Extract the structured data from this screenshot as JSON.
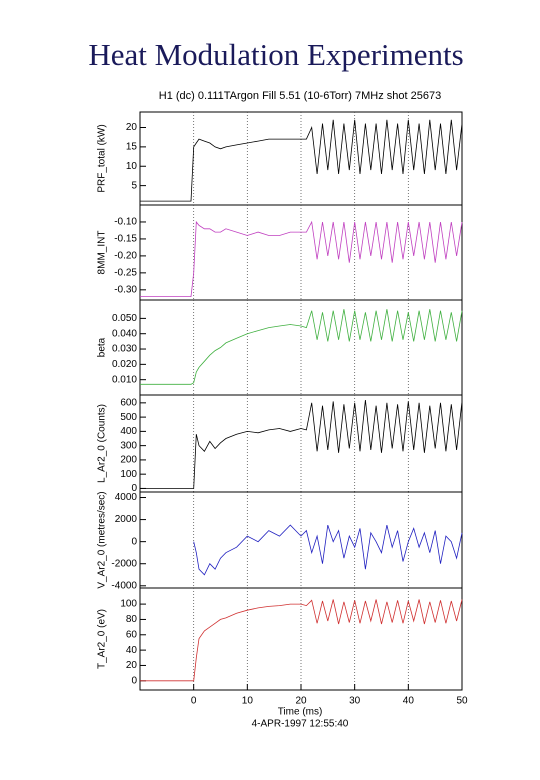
{
  "title": "Heat Modulation Experiments",
  "chart_data": {
    "type": "line",
    "header": "H1 (dc) 0.111TArgon Fill 5.51 (10-6Torr) 7MHz shot 25673",
    "xlabel": "Time (ms)",
    "footer": "4-APR-1997 12:55:40",
    "xlim": [
      -10,
      50
    ],
    "xticks": [
      0,
      10,
      20,
      30,
      40,
      50
    ],
    "grid": true,
    "x": [
      -10,
      -8,
      -6,
      -4,
      -2,
      -0.5,
      0,
      0.5,
      1,
      2,
      3,
      4,
      5,
      6,
      8,
      10,
      12,
      14,
      16,
      18,
      20,
      21,
      22,
      23,
      24,
      25,
      26,
      27,
      28,
      29,
      30,
      31,
      32,
      33,
      34,
      35,
      36,
      37,
      38,
      39,
      40,
      41,
      42,
      43,
      44,
      45,
      46,
      47,
      48,
      49,
      50
    ],
    "panels": [
      {
        "ylabel": "PRF_total (kW)",
        "color": "#000000",
        "ylim": [
          0,
          24
        ],
        "yticks": [
          5,
          10,
          15,
          20
        ],
        "values": [
          1,
          1,
          1,
          1,
          1,
          1,
          15,
          16,
          17,
          16.5,
          16,
          15,
          14.5,
          15,
          15.5,
          16,
          16.5,
          17,
          17,
          17,
          17,
          17,
          20,
          8,
          21,
          9,
          22,
          8,
          21,
          9,
          22,
          8,
          21,
          9,
          21,
          8,
          22,
          9,
          21,
          8,
          22,
          9,
          21,
          8,
          22,
          9,
          21,
          8,
          22,
          9,
          21
        ]
      },
      {
        "ylabel": "8MM_INT",
        "color": "#c040c0",
        "ylim": [
          -0.33,
          -0.05
        ],
        "yticks": [
          {
            "value": -0.3,
            "label": "-0.30"
          },
          {
            "value": -0.25,
            "label": "-0.25"
          },
          {
            "value": -0.2,
            "label": "-0.20"
          },
          {
            "value": -0.15,
            "label": "-0.15"
          },
          {
            "value": -0.1,
            "label": "-0.10"
          }
        ],
        "values": [
          -0.32,
          -0.32,
          -0.32,
          -0.32,
          -0.32,
          -0.32,
          -0.25,
          -0.1,
          -0.11,
          -0.12,
          -0.12,
          -0.13,
          -0.13,
          -0.12,
          -0.13,
          -0.14,
          -0.13,
          -0.14,
          -0.14,
          -0.13,
          -0.13,
          -0.13,
          -0.1,
          -0.21,
          -0.1,
          -0.2,
          -0.1,
          -0.21,
          -0.1,
          -0.22,
          -0.1,
          -0.21,
          -0.1,
          -0.2,
          -0.1,
          -0.21,
          -0.1,
          -0.22,
          -0.1,
          -0.21,
          -0.1,
          -0.2,
          -0.1,
          -0.21,
          -0.1,
          -0.22,
          -0.1,
          -0.21,
          -0.1,
          -0.2,
          -0.1
        ]
      },
      {
        "ylabel": "beta",
        "color": "#40b040",
        "ylim": [
          0,
          0.062
        ],
        "yticks": [
          {
            "value": 0.01,
            "label": "0.010"
          },
          {
            "value": 0.02,
            "label": "0.020"
          },
          {
            "value": 0.03,
            "label": "0.030"
          },
          {
            "value": 0.04,
            "label": "0.040"
          },
          {
            "value": 0.05,
            "label": "0.050"
          }
        ],
        "values": [
          0.007,
          0.007,
          0.007,
          0.007,
          0.007,
          0.007,
          0.008,
          0.015,
          0.018,
          0.022,
          0.026,
          0.029,
          0.031,
          0.034,
          0.037,
          0.04,
          0.042,
          0.044,
          0.045,
          0.046,
          0.045,
          0.044,
          0.055,
          0.036,
          0.054,
          0.035,
          0.055,
          0.036,
          0.056,
          0.035,
          0.055,
          0.036,
          0.054,
          0.035,
          0.055,
          0.036,
          0.056,
          0.035,
          0.055,
          0.036,
          0.054,
          0.035,
          0.055,
          0.036,
          0.056,
          0.035,
          0.055,
          0.036,
          0.054,
          0.035,
          0.055
        ]
      },
      {
        "ylabel": "L_Ar2_0 (Counts)",
        "color": "#000000",
        "ylim": [
          -25,
          655
        ],
        "yticks": [
          0,
          100,
          200,
          300,
          400,
          500,
          600
        ],
        "values": [
          0,
          0,
          0,
          0,
          0,
          0,
          0,
          380,
          300,
          260,
          330,
          280,
          320,
          350,
          380,
          400,
          390,
          410,
          420,
          400,
          420,
          410,
          600,
          260,
          580,
          270,
          610,
          250,
          590,
          280,
          600,
          260,
          620,
          270,
          580,
          250,
          600,
          280,
          590,
          260,
          610,
          270,
          600,
          250,
          580,
          280,
          600,
          260,
          590,
          270,
          610
        ]
      },
      {
        "ylabel": "V_Ar2_0 (metres/sec)",
        "color": "#2020c0",
        "ylim": [
          -4200,
          4500
        ],
        "yticks": [
          -4000,
          -2000,
          0,
          2000,
          4000
        ],
        "values": [
          null,
          null,
          null,
          null,
          null,
          null,
          0,
          -1000,
          -2500,
          -3000,
          -2000,
          -2500,
          -1500,
          -1000,
          -500,
          500,
          0,
          1000,
          500,
          1500,
          500,
          1000,
          -1000,
          500,
          -2000,
          1500,
          0,
          1000,
          -1500,
          500,
          -500,
          1200,
          -2500,
          800,
          0,
          -1000,
          1500,
          -500,
          1000,
          -1800,
          0,
          1200,
          -500,
          800,
          -1000,
          1000,
          -2000,
          500,
          0,
          -1500,
          800
        ]
      },
      {
        "ylabel": "T_Ar2_0 (eV)",
        "color": "#d03030",
        "ylim": [
          -12,
          121
        ],
        "yticks": [
          0,
          20,
          40,
          60,
          80,
          100
        ],
        "values": [
          0,
          0,
          0,
          0,
          0,
          0,
          0,
          30,
          55,
          65,
          70,
          75,
          80,
          82,
          88,
          92,
          95,
          97,
          98,
          100,
          100,
          98,
          105,
          75,
          104,
          78,
          106,
          74,
          103,
          76,
          105,
          75,
          104,
          78,
          106,
          74,
          103,
          76,
          105,
          75,
          104,
          78,
          106,
          74,
          103,
          76,
          105,
          75,
          104,
          78,
          106
        ]
      }
    ]
  }
}
